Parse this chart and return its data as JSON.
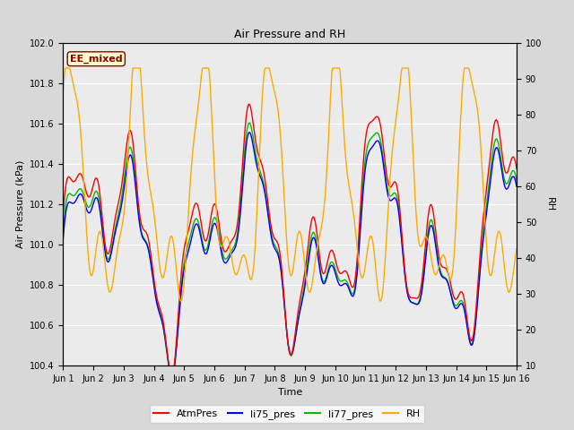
{
  "title": "Air Pressure and RH",
  "ylabel_left": "Air Pressure (kPa)",
  "ylabel_right": "RH",
  "xlabel": "Time",
  "annotation": "EE_mixed",
  "ylim_left": [
    100.4,
    102.0
  ],
  "ylim_right": [
    10,
    100
  ],
  "yticks_left": [
    100.4,
    100.6,
    100.8,
    101.0,
    101.2,
    101.4,
    101.6,
    101.8,
    102.0
  ],
  "yticks_right": [
    10,
    20,
    30,
    40,
    50,
    60,
    70,
    80,
    90,
    100
  ],
  "xtick_labels": [
    "Jun 1",
    "Jun 2",
    "Jun 3",
    "Jun 4",
    "Jun 5",
    "Jun 6",
    "Jun 7",
    "Jun 8",
    "Jun 9",
    "Jun 10",
    "Jun 11",
    "Jun 12",
    "Jun 13",
    "Jun 14",
    "Jun 15",
    "Jun 16"
  ],
  "colors": {
    "AtmPres": "#ff0000",
    "li75_pres": "#0000ff",
    "li77_pres": "#00bb00",
    "RH": "#ffaa00"
  },
  "legend_labels": [
    "AtmPres",
    "li75_pres",
    "li77_pres",
    "RH"
  ],
  "fig_bg_color": "#d8d8d8",
  "plot_bg_color": "#ebebeb",
  "grid_color": "#ffffff",
  "annotation_fg": "#880000",
  "annotation_bg": "#ffffcc"
}
